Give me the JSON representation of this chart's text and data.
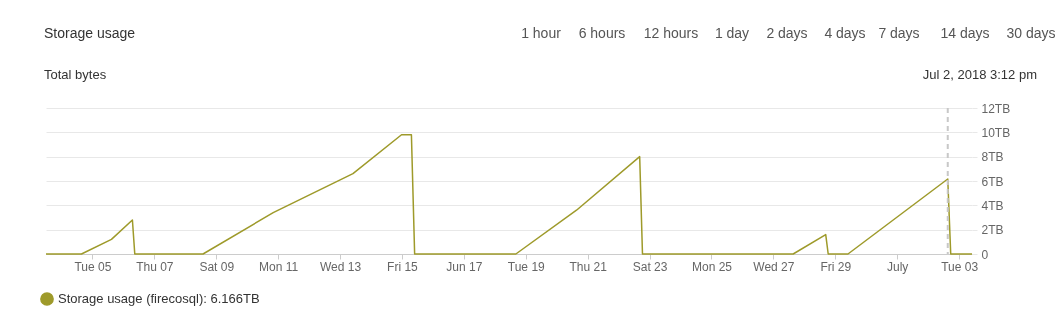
{
  "chart_data": {
    "type": "line",
    "ylabel": "Total bytes",
    "x": [
      "2018-06-03T12:00",
      "2018-06-04T15:30",
      "2018-06-05T14:45",
      "2018-06-06T07:00",
      "2018-06-06T08:50",
      "2018-06-08T13:45",
      "2018-06-10T20:10",
      "2018-06-13T10:00",
      "2018-06-14T23:40",
      "2018-06-15T07:20",
      "2018-06-15T09:50",
      "2018-06-18T16:20",
      "2018-06-20T15:20",
      "2018-06-22T16:20",
      "2018-06-22T18:30",
      "2018-06-27T15:20",
      "2018-06-28T16:35",
      "2018-06-28T18:30",
      "2018-06-29T09:50",
      "2018-07-02T15:12",
      "2018-07-02T17:30",
      "2018-07-03T10:00"
    ],
    "series": [
      {
        "name": "Storage usage (firecosql): 6.166TB",
        "color": "#9e9a2a",
        "values": [
          0,
          0,
          1.2,
          2.8,
          0,
          0,
          3.4,
          6.6,
          9.8,
          9.8,
          0,
          0,
          3.6,
          8.0,
          0,
          0,
          1.6,
          0,
          0,
          6.166,
          0,
          0
        ]
      }
    ],
    "xlim": [
      "2018-06-03T12:00",
      "2018-07-03T10:00"
    ],
    "xticks": [
      {
        "value": "2018-06-05",
        "label": "Tue 05"
      },
      {
        "value": "2018-06-07",
        "label": "Thu 07"
      },
      {
        "value": "2018-06-09",
        "label": "Sat 09"
      },
      {
        "value": "2018-06-11",
        "label": "Mon 11"
      },
      {
        "value": "2018-06-13",
        "label": "Wed 13"
      },
      {
        "value": "2018-06-15",
        "label": "Fri 15"
      },
      {
        "value": "2018-06-17",
        "label": "Jun 17"
      },
      {
        "value": "2018-06-19",
        "label": "Tue 19"
      },
      {
        "value": "2018-06-21",
        "label": "Thu 21"
      },
      {
        "value": "2018-06-23",
        "label": "Sat 23"
      },
      {
        "value": "2018-06-25",
        "label": "Mon 25"
      },
      {
        "value": "2018-06-27",
        "label": "Wed 27"
      },
      {
        "value": "2018-06-29",
        "label": "Fri 29"
      },
      {
        "value": "2018-07-01",
        "label": "July"
      },
      {
        "value": "2018-07-03",
        "label": "Tue 03"
      }
    ],
    "ylim": [
      0,
      12
    ],
    "yticks": [
      {
        "value": 0,
        "label": "0"
      },
      {
        "value": 2,
        "label": "2TB"
      },
      {
        "value": 4,
        "label": "4TB"
      },
      {
        "value": 6,
        "label": "6TB"
      },
      {
        "value": 8,
        "label": "8TB"
      },
      {
        "value": 10,
        "label": "10TB"
      },
      {
        "value": 12,
        "label": "12TB"
      }
    ],
    "ref_lines": [
      {
        "axis": "x",
        "value": "2018-07-02T15:12",
        "label": "Jul 2, 2018 3:12 pm",
        "color": "#c8c8c8",
        "line_style": "dashed"
      }
    ],
    "annotations": [
      "Storage usage",
      "1 hour",
      "6 hours",
      "12 hours",
      "1 day",
      "2 days",
      "4 days",
      "7 days",
      "14 days",
      "30 days"
    ],
    "grid": "y",
    "legend": "bottom left",
    "marker": "none",
    "line_style": "solid"
  }
}
